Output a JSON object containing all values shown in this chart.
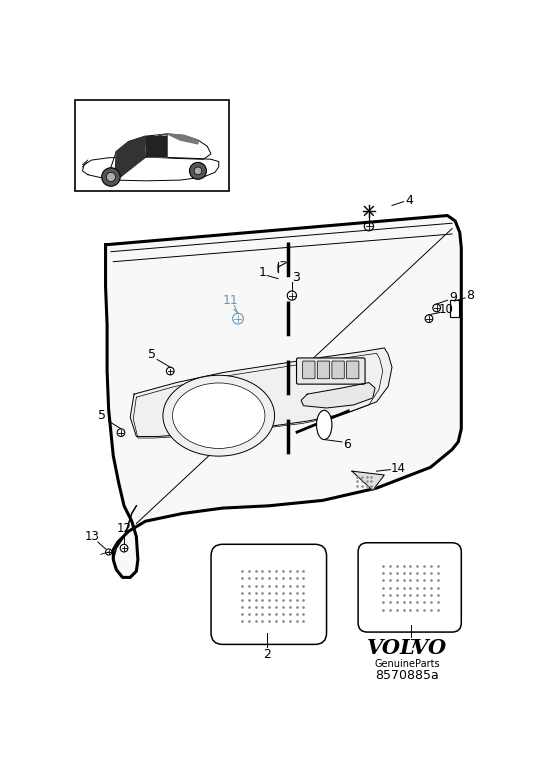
{
  "background_color": "#ffffff",
  "line_color": "#000000",
  "label_color_11": "#6699bb",
  "volvo_text": "VOLVO",
  "genuine_parts": "GenuineParts",
  "part_number_code": "8570885a",
  "figsize": [
    5.38,
    7.82
  ],
  "dpi": 100
}
